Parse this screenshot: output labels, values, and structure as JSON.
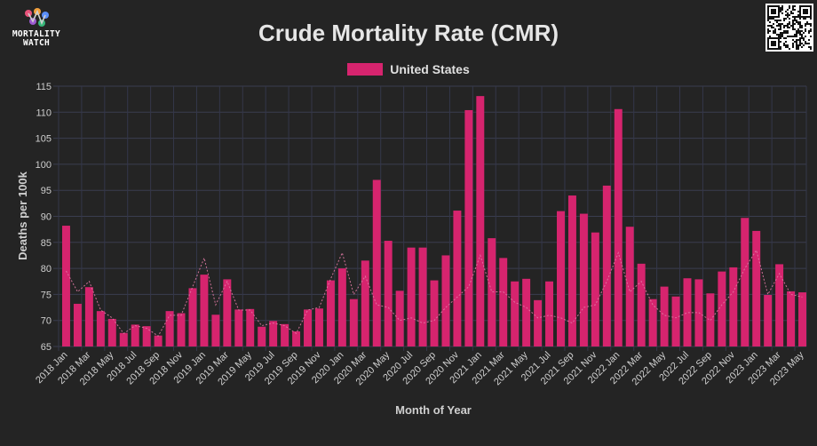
{
  "brand": {
    "line1": "MORTALITY",
    "line2": "WATCH"
  },
  "chart_data": {
    "type": "bar",
    "title": "Crude Mortality Rate (CMR)",
    "xlabel": "Month of Year",
    "ylabel": "Deaths per 100k",
    "ylim": [
      65,
      115
    ],
    "yticks": [
      65,
      70,
      75,
      80,
      85,
      90,
      95,
      100,
      105,
      110,
      115
    ],
    "grid": true,
    "legend_position": "top",
    "bar_color": "#d6246e",
    "trend_color": "#e07aa4",
    "categories": [
      "2018 Jan",
      "2018 Feb",
      "2018 Mar",
      "2018 Apr",
      "2018 May",
      "2018 Jun",
      "2018 Jul",
      "2018 Aug",
      "2018 Sep",
      "2018 Oct",
      "2018 Nov",
      "2018 Dec",
      "2019 Jan",
      "2019 Feb",
      "2019 Mar",
      "2019 Apr",
      "2019 May",
      "2019 Jun",
      "2019 Jul",
      "2019 Aug",
      "2019 Sep",
      "2019 Oct",
      "2019 Nov",
      "2019 Dec",
      "2020 Jan",
      "2020 Feb",
      "2020 Mar",
      "2020 Apr",
      "2020 May",
      "2020 Jun",
      "2020 Jul",
      "2020 Aug",
      "2020 Sep",
      "2020 Oct",
      "2020 Nov",
      "2020 Dec",
      "2021 Jan",
      "2021 Feb",
      "2021 Mar",
      "2021 Apr",
      "2021 May",
      "2021 Jun",
      "2021 Jul",
      "2021 Aug",
      "2021 Sep",
      "2021 Oct",
      "2021 Nov",
      "2021 Dec",
      "2022 Jan",
      "2022 Feb",
      "2022 Mar",
      "2022 Apr",
      "2022 May",
      "2022 Jun",
      "2022 Jul",
      "2022 Aug",
      "2022 Sep",
      "2022 Oct",
      "2022 Nov",
      "2022 Dec",
      "2023 Jan",
      "2023 Feb",
      "2023 Mar",
      "2023 Apr",
      "2023 May"
    ],
    "series": [
      {
        "name": "United States",
        "values": [
          88.2,
          73.2,
          76.4,
          71.8,
          70.3,
          67.6,
          69.2,
          68.9,
          67.1,
          71.8,
          71.4,
          76.2,
          78.8,
          71.1,
          77.9,
          72.1,
          72.2,
          68.8,
          69.9,
          69.3,
          67.9,
          72.1,
          72.3,
          77.7,
          80.0,
          74.1,
          81.5,
          97.0,
          85.3,
          75.7,
          84.0,
          84.0,
          77.7,
          82.5,
          91.1,
          110.4,
          113.1,
          85.8,
          82.0,
          77.5,
          78.0,
          73.9,
          77.5,
          91.0,
          94.0,
          90.5,
          86.9,
          95.9,
          110.6,
          88.0,
          80.9,
          74.1,
          76.5,
          74.6,
          78.1,
          77.9,
          75.2,
          79.4,
          80.2,
          89.7,
          87.2,
          74.9,
          80.8,
          75.6,
          75.4
        ],
        "trend": [
          79.5,
          75.5,
          77.5,
          72.0,
          70.5,
          67.5,
          69.0,
          68.5,
          67.0,
          71.0,
          71.0,
          76.5,
          82.0,
          73.0,
          77.5,
          72.0,
          72.0,
          69.0,
          69.5,
          69.0,
          67.5,
          72.0,
          72.5,
          78.0,
          83.0,
          75.0,
          78.5,
          73.0,
          72.5,
          70.0,
          70.5,
          69.5,
          70.0,
          72.5,
          74.5,
          76.5,
          82.5,
          75.5,
          75.5,
          73.5,
          72.5,
          70.5,
          71.0,
          70.5,
          69.5,
          72.5,
          73.0,
          77.5,
          83.0,
          75.5,
          77.5,
          73.0,
          71.0,
          70.5,
          71.5,
          71.5,
          70.0,
          73.0,
          75.5,
          80.0,
          83.5,
          75.0,
          79.0,
          75.0,
          74.5
        ]
      }
    ],
    "xtick_labels": [
      "2018 Jan",
      "2018 Mar",
      "2018 May",
      "2018 Jul",
      "2018 Sep",
      "2018 Nov",
      "2019 Jan",
      "2019 Mar",
      "2019 May",
      "2019 Jul",
      "2019 Sep",
      "2019 Nov",
      "2020 Jan",
      "2020 Mar",
      "2020 May",
      "2020 Jul",
      "2020 Sep",
      "2020 Nov",
      "2021 Jan",
      "2021 Mar",
      "2021 May",
      "2021 Jul",
      "2021 Sep",
      "2021 Nov",
      "2022 Jan",
      "2022 Mar",
      "2022 May",
      "2022 Jul",
      "2022 Sep",
      "2022 Nov",
      "2023 Jan",
      "2023 Mar",
      "2023 May"
    ]
  }
}
